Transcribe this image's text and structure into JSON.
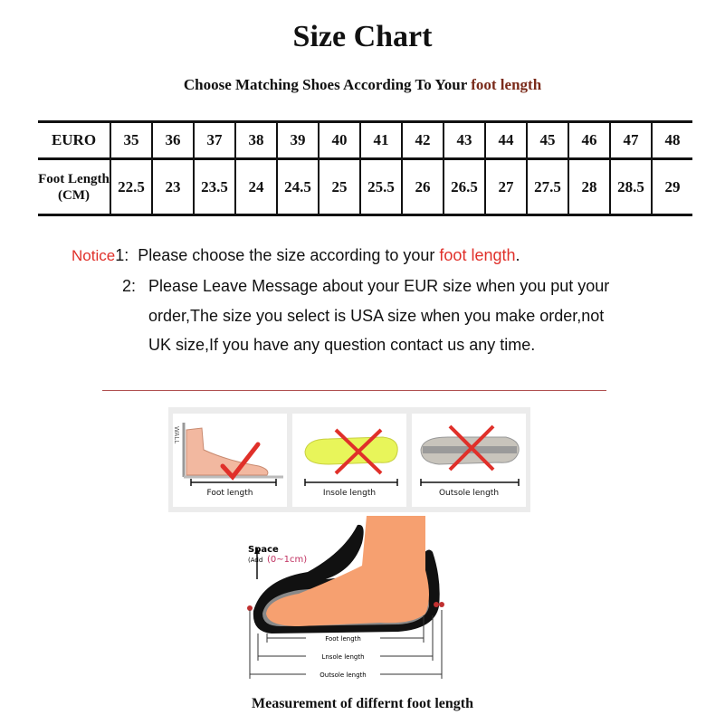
{
  "title": "Size Chart",
  "subtitle": {
    "prefix": "Choose Matching Shoes According To Your ",
    "highlight": "foot length"
  },
  "table": {
    "row_headers": [
      "EURO",
      "Foot Length (CM)"
    ],
    "euro": [
      "35",
      "36",
      "37",
      "38",
      "39",
      "40",
      "41",
      "42",
      "43",
      "44",
      "45",
      "46",
      "47",
      "48"
    ],
    "foot_length_cm": [
      "22.5",
      "23",
      "23.5",
      "24",
      "24.5",
      "25",
      "25.5",
      "26",
      "26.5",
      "27",
      "27.5",
      "28",
      "28.5",
      "29"
    ]
  },
  "notice": {
    "label": "Notice",
    "item1_num": "1:",
    "item1_text": "Please choose the size according to your ",
    "item1_highlight": "foot length",
    "item1_end": ".",
    "item2_num": "2:",
    "item2_lines": [
      "Please Leave Message about your EUR size when you put your",
      "order,The size you select is USA size when you make order,not",
      "UK size,If you have any question  contact us any time."
    ]
  },
  "panels": [
    {
      "label": "Foot length",
      "mark": "check",
      "wall": "WALL"
    },
    {
      "label": "Insole length",
      "mark": "cross"
    },
    {
      "label": "Outsole length",
      "mark": "cross"
    }
  ],
  "diagram": {
    "space_label": "Space",
    "space_add_prefix": "(Add",
    "space_add_value": "(0~1cm)",
    "foot_length": "Foot length",
    "insole_length": "Lnsole length",
    "outsole_length": "Outsole length"
  },
  "caption": "Measurement of differnt foot length",
  "colors": {
    "accent_red": "#e0302a",
    "subtitle_highlight": "#7a2a1a",
    "skin": "#f6a070"
  }
}
